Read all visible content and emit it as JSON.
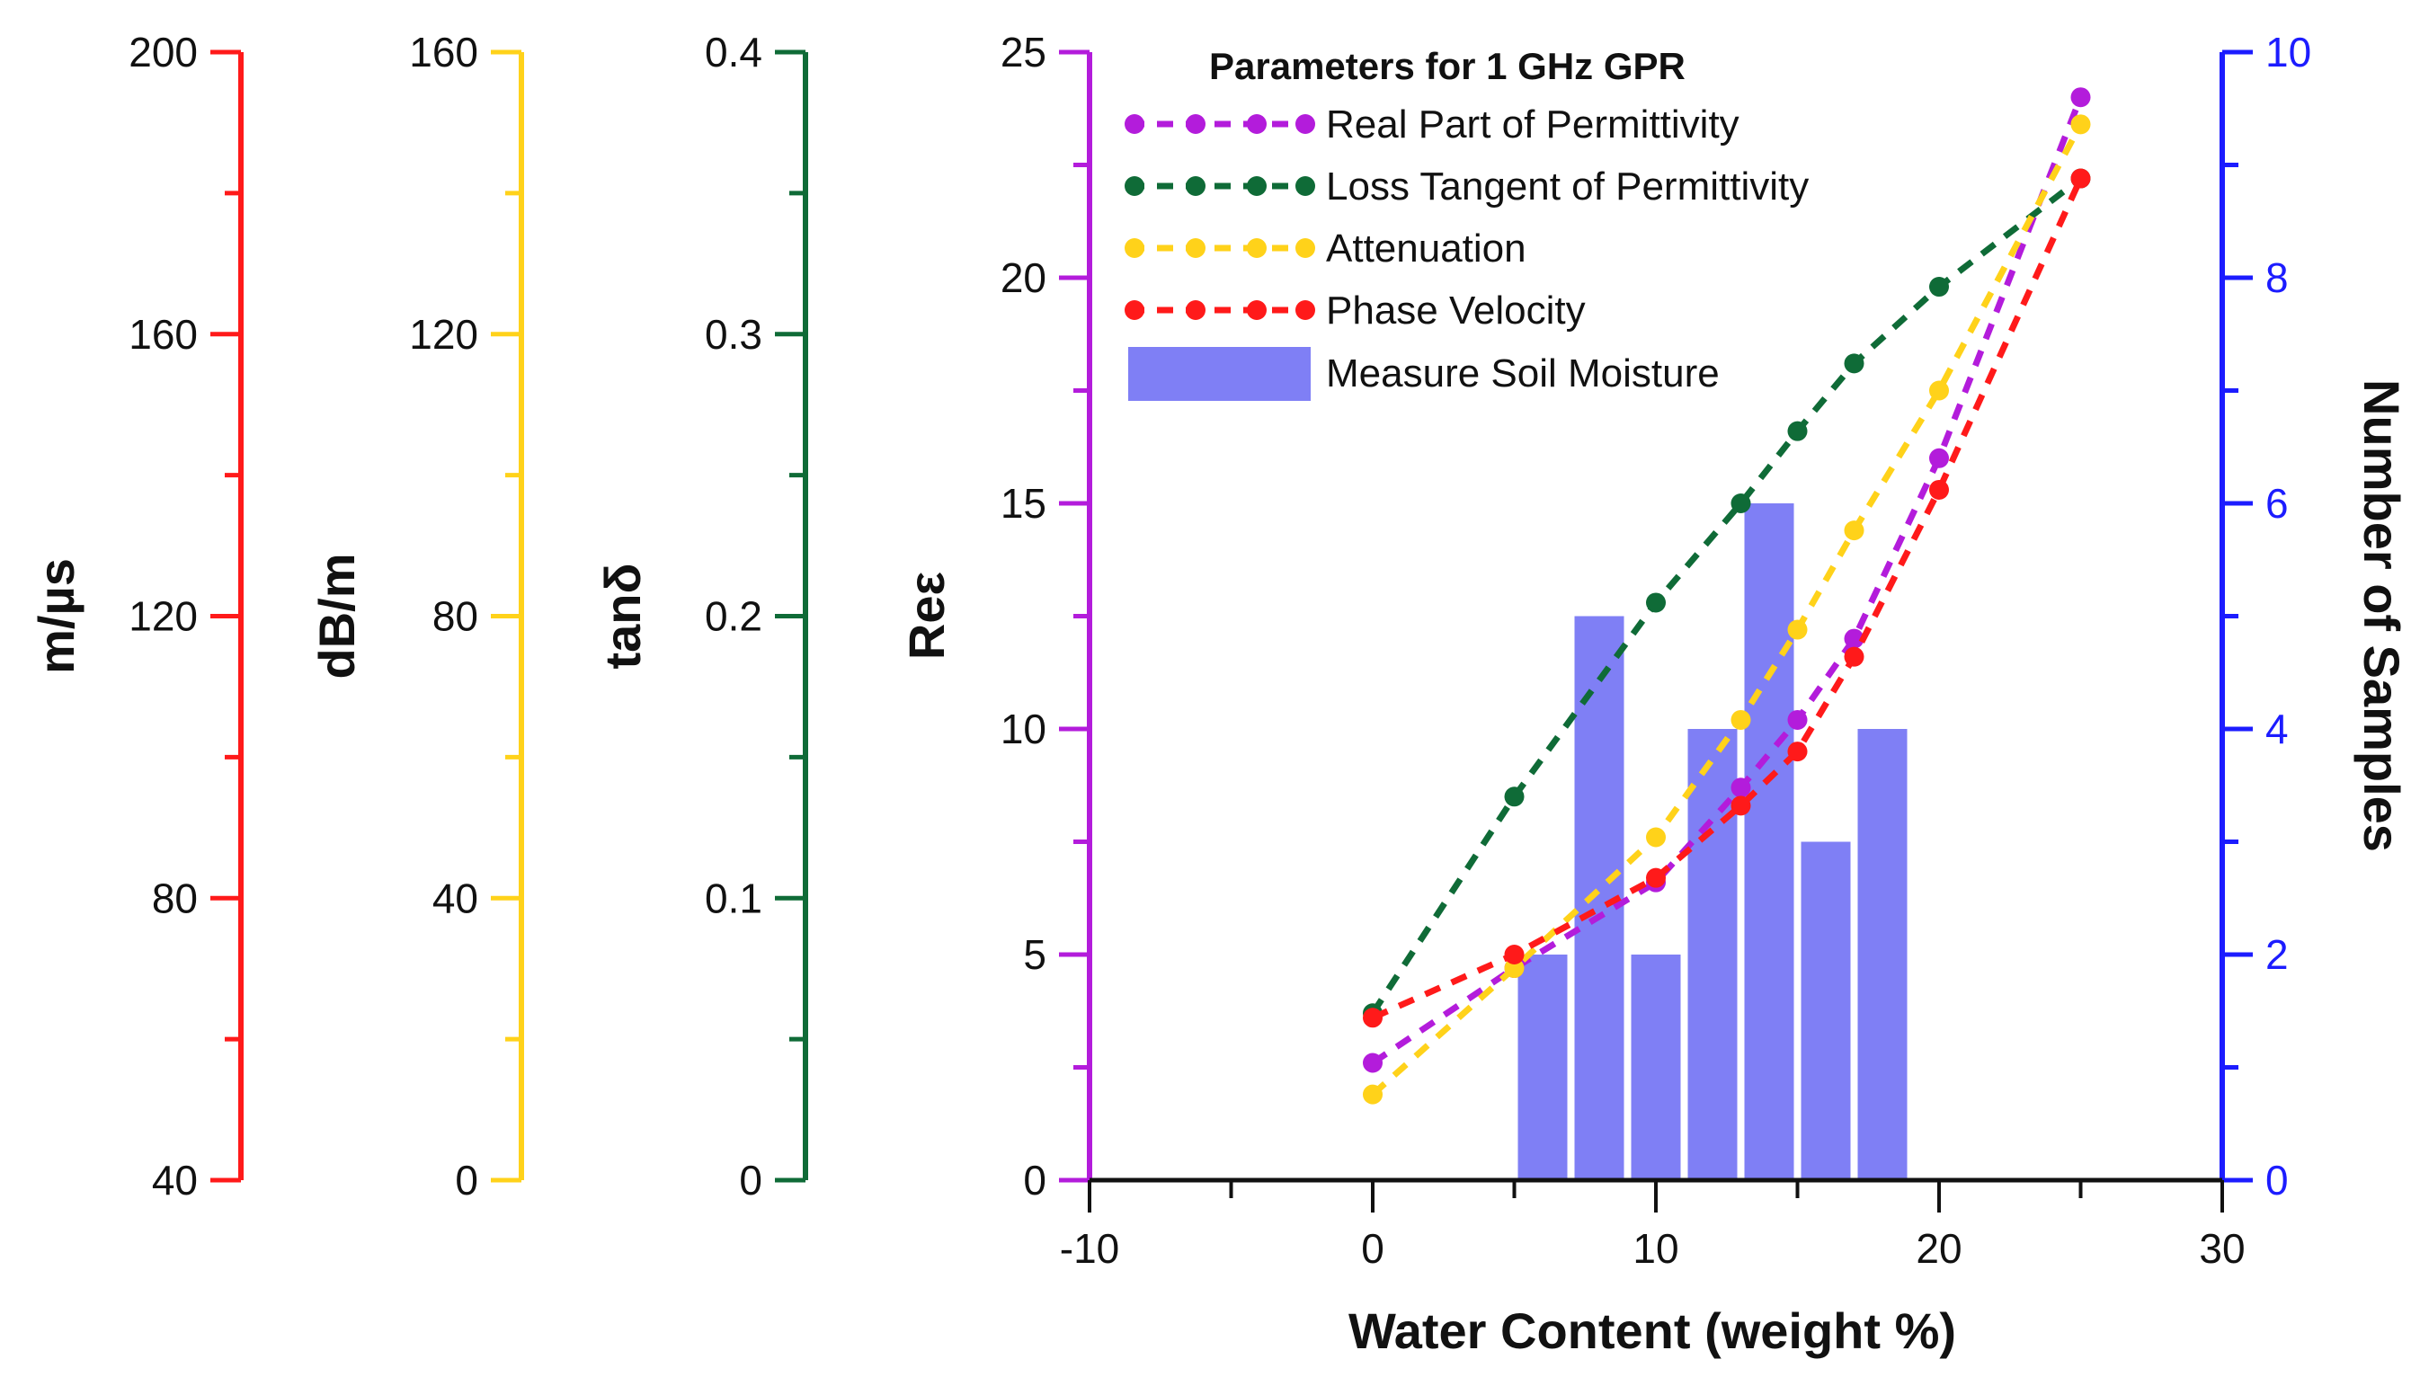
{
  "chart_data": {
    "type": "bar+line",
    "title": "Parameters for 1 GHz GPR",
    "xlabel": "Water Content (weight %)",
    "xlim": [
      -10,
      30
    ],
    "x_ticks": [
      "-10",
      "0",
      "10",
      "20",
      "30"
    ],
    "colors": {
      "velocity": "#ff1a1a",
      "attenuation": "#ffd21a",
      "loss_tangent": "#0f6b37",
      "real_perm": "#b31cdb",
      "bars": "#7f7ff5",
      "bars_axis": "#1c1cff"
    },
    "left_axes": [
      {
        "name": "phase-velocity-axis",
        "label": "m/µs",
        "color": "#ff1a1a",
        "range": [
          40,
          200
        ],
        "ticks": [
          "40",
          "80",
          "120",
          "160",
          "200"
        ]
      },
      {
        "name": "attenuation-axis",
        "label": "dB/m",
        "color": "#ffd21a",
        "range": [
          0,
          160
        ],
        "ticks": [
          "0",
          "40",
          "80",
          "120",
          "160"
        ]
      },
      {
        "name": "loss-tangent-axis",
        "label": "tanδ",
        "color": "#0f6b37",
        "range": [
          0,
          0.4
        ],
        "ticks": [
          "0",
          "0.1",
          "0.2",
          "0.3",
          "0.4"
        ]
      }
    ],
    "main_axis": {
      "label": "Reε",
      "color": "#b31cdb",
      "range": [
        0,
        25
      ],
      "ticks": [
        "0",
        "5",
        "10",
        "15",
        "20",
        "25"
      ]
    },
    "right_axis": {
      "label": "Number of Samples",
      "color": "#1c1cff",
      "range": [
        0,
        10
      ],
      "ticks": [
        "0",
        "2",
        "4",
        "6",
        "8",
        "10"
      ]
    },
    "bars": {
      "name": "Measure Soil Moisture",
      "bin_width": 2,
      "x": [
        6,
        8,
        10,
        12,
        14,
        16,
        18
      ],
      "values": [
        2,
        5,
        2,
        4,
        6,
        3,
        4
      ]
    },
    "series": [
      {
        "name": "Real Part of Permittivity",
        "key": "real_perm",
        "x": [
          0,
          5,
          10,
          13,
          15,
          17,
          20,
          25
        ],
        "values": [
          2.6,
          4.7,
          6.6,
          8.7,
          10.2,
          12.0,
          16.0,
          24.0
        ]
      },
      {
        "name": "Loss Tangent of Permittivity",
        "key": "loss_tangent",
        "x": [
          0,
          5,
          10,
          13,
          15,
          17,
          20,
          25
        ],
        "values": [
          3.7,
          8.5,
          12.8,
          15.0,
          16.6,
          18.1,
          19.8,
          22.2
        ]
      },
      {
        "name": "Attenuation",
        "key": "attenuation",
        "x": [
          0,
          5,
          10,
          13,
          15,
          17,
          20,
          25
        ],
        "values": [
          1.9,
          4.7,
          7.6,
          10.2,
          12.2,
          14.4,
          17.5,
          23.4
        ]
      },
      {
        "name": "Phase Velocity",
        "key": "velocity",
        "x": [
          0,
          5,
          10,
          13,
          15,
          17,
          20,
          25
        ],
        "values": [
          3.6,
          5.0,
          6.7,
          8.3,
          9.5,
          11.6,
          15.3,
          22.2
        ]
      }
    ],
    "legend": {
      "title": "Parameters for 1 GHz GPR",
      "position": "top-center",
      "entries": [
        "Real Part of Permittivity",
        "Loss Tangent of Permittivity",
        "Attenuation",
        "Phase Velocity",
        "Measure Soil Moisture"
      ]
    }
  }
}
